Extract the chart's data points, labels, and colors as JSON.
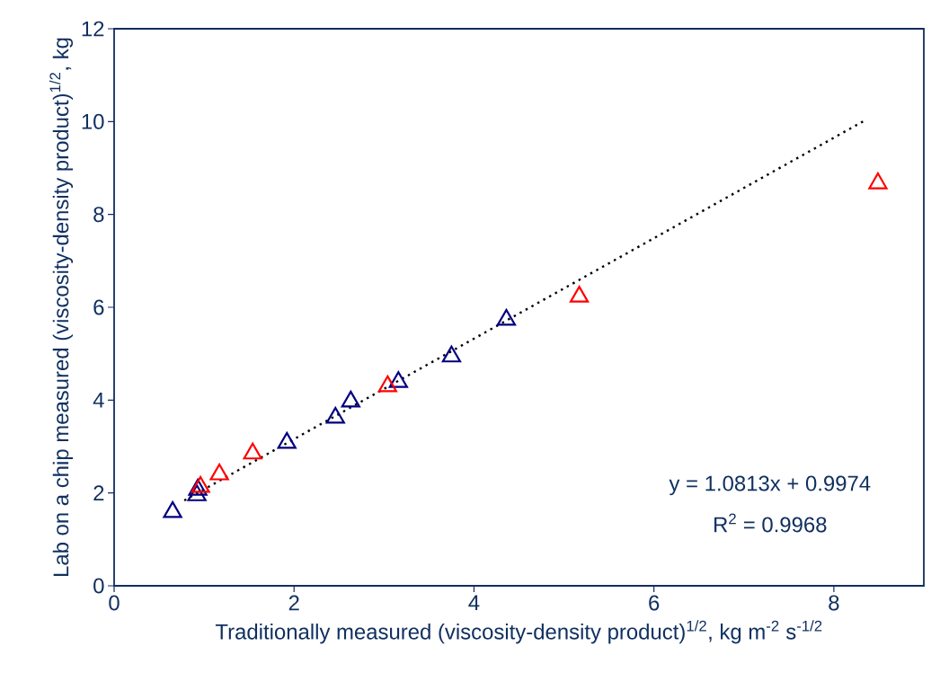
{
  "chart_data": {
    "type": "scatter",
    "xlabel": "Traditionally measured (viscosity-density product)$^{1/2}$, kg m$^{-2}$ s$^{-1/2}$",
    "ylabel": "Lab on a chip measured (viscosity-density product)$^{1/2}$, kg",
    "series": [
      {
        "color": "#000080",
        "x": [
          0.65,
          0.92,
          0.93,
          1.92,
          2.46,
          2.63,
          3.16,
          3.75,
          4.36
        ],
        "values": [
          1.59,
          1.95,
          2.07,
          3.08,
          3.62,
          3.97,
          4.39,
          4.94,
          5.73
        ]
      },
      {
        "color": "#ff0000",
        "x": [
          0.96,
          1.17,
          1.54,
          3.04,
          5.17,
          8.49
        ],
        "values": [
          2.13,
          2.4,
          2.85,
          4.3,
          6.23,
          8.67
        ]
      },
      {
        "type": "line",
        "color": "#000000",
        "marker": "none",
        "line_style": "dotted",
        "x": [
          0.78,
          8.34
        ],
        "values": [
          1.84,
          10.02
        ]
      }
    ],
    "marker": "triangle",
    "xlim": [
      0,
      9
    ],
    "ylim": [
      0,
      12
    ],
    "xticks": [
      0,
      2,
      4,
      6,
      8
    ],
    "yticks": [
      0,
      2,
      4,
      6,
      8,
      10,
      12
    ],
    "grid": false,
    "annotations": [
      "y = 1.0813x + 0.9974",
      "R$^{2}$ = 0.9968"
    ]
  }
}
